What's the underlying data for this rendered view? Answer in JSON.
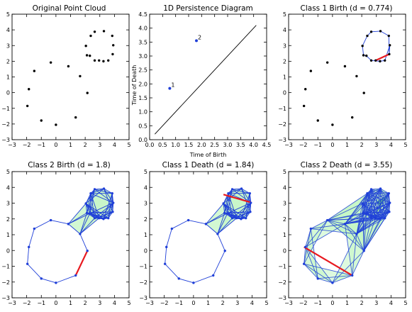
{
  "chart_data": [
    {
      "type": "scatter",
      "panel": "cloud",
      "title": "Original Point Cloud",
      "xlabel": "",
      "ylabel": "",
      "xlim": [
        -3,
        5
      ],
      "ylim": [
        -3,
        5
      ],
      "xticks": [
        -3,
        -2,
        -1,
        0,
        1,
        2,
        3,
        4,
        5
      ],
      "yticks": [
        -3,
        -2,
        -1,
        0,
        1,
        2,
        3,
        4,
        5
      ],
      "grid": false,
      "points_x": [
        2.38,
        2.05,
        2.12,
        2.65,
        3.28,
        3.85,
        3.92,
        3.58,
        2.95,
        2.32,
        3.88,
        2.65,
        3.25,
        -0.35,
        0.85,
        1.65,
        2.15,
        1.35,
        0.0,
        -1.0,
        -1.95,
        -1.85,
        -1.48
      ],
      "points_y": [
        3.62,
        2.98,
        2.38,
        3.88,
        3.92,
        3.62,
        3.02,
        2.05,
        2.05,
        2.35,
        2.45,
        2.05,
        2.0,
        1.92,
        1.68,
        1.05,
        -0.02,
        -1.58,
        -2.05,
        -1.78,
        -0.85,
        0.22,
        1.38
      ]
    },
    {
      "type": "scatter",
      "panel": "persistence",
      "title": "1D Persistence Diagram",
      "xlabel": "Time of Birth",
      "ylabel": "Time of Death",
      "xlim": [
        0.0,
        4.5
      ],
      "ylim": [
        0.0,
        4.5
      ],
      "xticks": [
        "0.0",
        "0.5",
        "1.0",
        "1.5",
        "2.0",
        "2.5",
        "3.0",
        "3.5",
        "4.0",
        "4.5"
      ],
      "yticks": [
        "0.0",
        "0.5",
        "1.0",
        "1.5",
        "2.0",
        "2.5",
        "3.0",
        "3.5",
        "4.0",
        "4.5"
      ],
      "grid": false,
      "diagonal": {
        "from": [
          0.2,
          0.2
        ],
        "to": [
          4.1,
          4.1
        ]
      },
      "points": [
        {
          "label": "1",
          "birth": 0.774,
          "death": 1.84
        },
        {
          "label": "2",
          "birth": 1.8,
          "death": 3.55
        }
      ]
    },
    {
      "type": "network",
      "panel": "c1birth",
      "title": "Class 1 Birth (d = 0.774)",
      "xlim": [
        -3,
        5
      ],
      "ylim": [
        -3,
        5
      ],
      "xticks": [
        -3,
        -2,
        -1,
        0,
        1,
        2,
        3,
        4,
        5
      ],
      "yticks": [
        -3,
        -2,
        -1,
        0,
        1,
        2,
        3,
        4,
        5
      ],
      "complex": "ring",
      "highlight": [
        2.95,
        2.05,
        3.88,
        2.45
      ]
    },
    {
      "type": "network",
      "panel": "c2birth",
      "title": "Class 2 Birth (d = 1.8)",
      "xlim": [
        -3,
        5
      ],
      "ylim": [
        -3,
        5
      ],
      "xticks": [
        -3,
        -2,
        -1,
        0,
        1,
        2,
        3,
        4,
        5
      ],
      "yticks": [
        -3,
        -2,
        -1,
        0,
        1,
        2,
        3,
        4,
        5
      ],
      "complex": "medium",
      "highlight": [
        2.15,
        -0.02,
        1.35,
        -1.58
      ]
    },
    {
      "type": "network",
      "panel": "c1death",
      "title": "Class 1 Death (d = 1.84)",
      "xlim": [
        -3,
        5
      ],
      "ylim": [
        -3,
        5
      ],
      "xticks": [
        -3,
        -2,
        -1,
        0,
        1,
        2,
        3,
        4,
        5
      ],
      "yticks": [
        -3,
        -2,
        -1,
        0,
        1,
        2,
        3,
        4,
        5
      ],
      "complex": "medium",
      "highlight": [
        2.05,
        3.55,
        3.92,
        3.05
      ]
    },
    {
      "type": "network",
      "panel": "c2death",
      "title": "Class 2 Death (d = 3.55)",
      "xlim": [
        -3,
        5
      ],
      "ylim": [
        -3,
        5
      ],
      "xticks": [
        -3,
        -2,
        -1,
        0,
        1,
        2,
        3,
        4,
        5
      ],
      "yticks": [
        -3,
        -2,
        -1,
        0,
        1,
        2,
        3,
        4,
        5
      ],
      "complex": "full",
      "highlight": [
        -1.95,
        0.22,
        1.35,
        -1.58
      ]
    }
  ],
  "colors": {
    "point": "#000000",
    "edge": "#1f3fd8",
    "fill": "#c7f5c7",
    "fill_dense": "#5ee05e",
    "highlight": "#e8191f",
    "persistence_point": "#1f3fd8"
  }
}
